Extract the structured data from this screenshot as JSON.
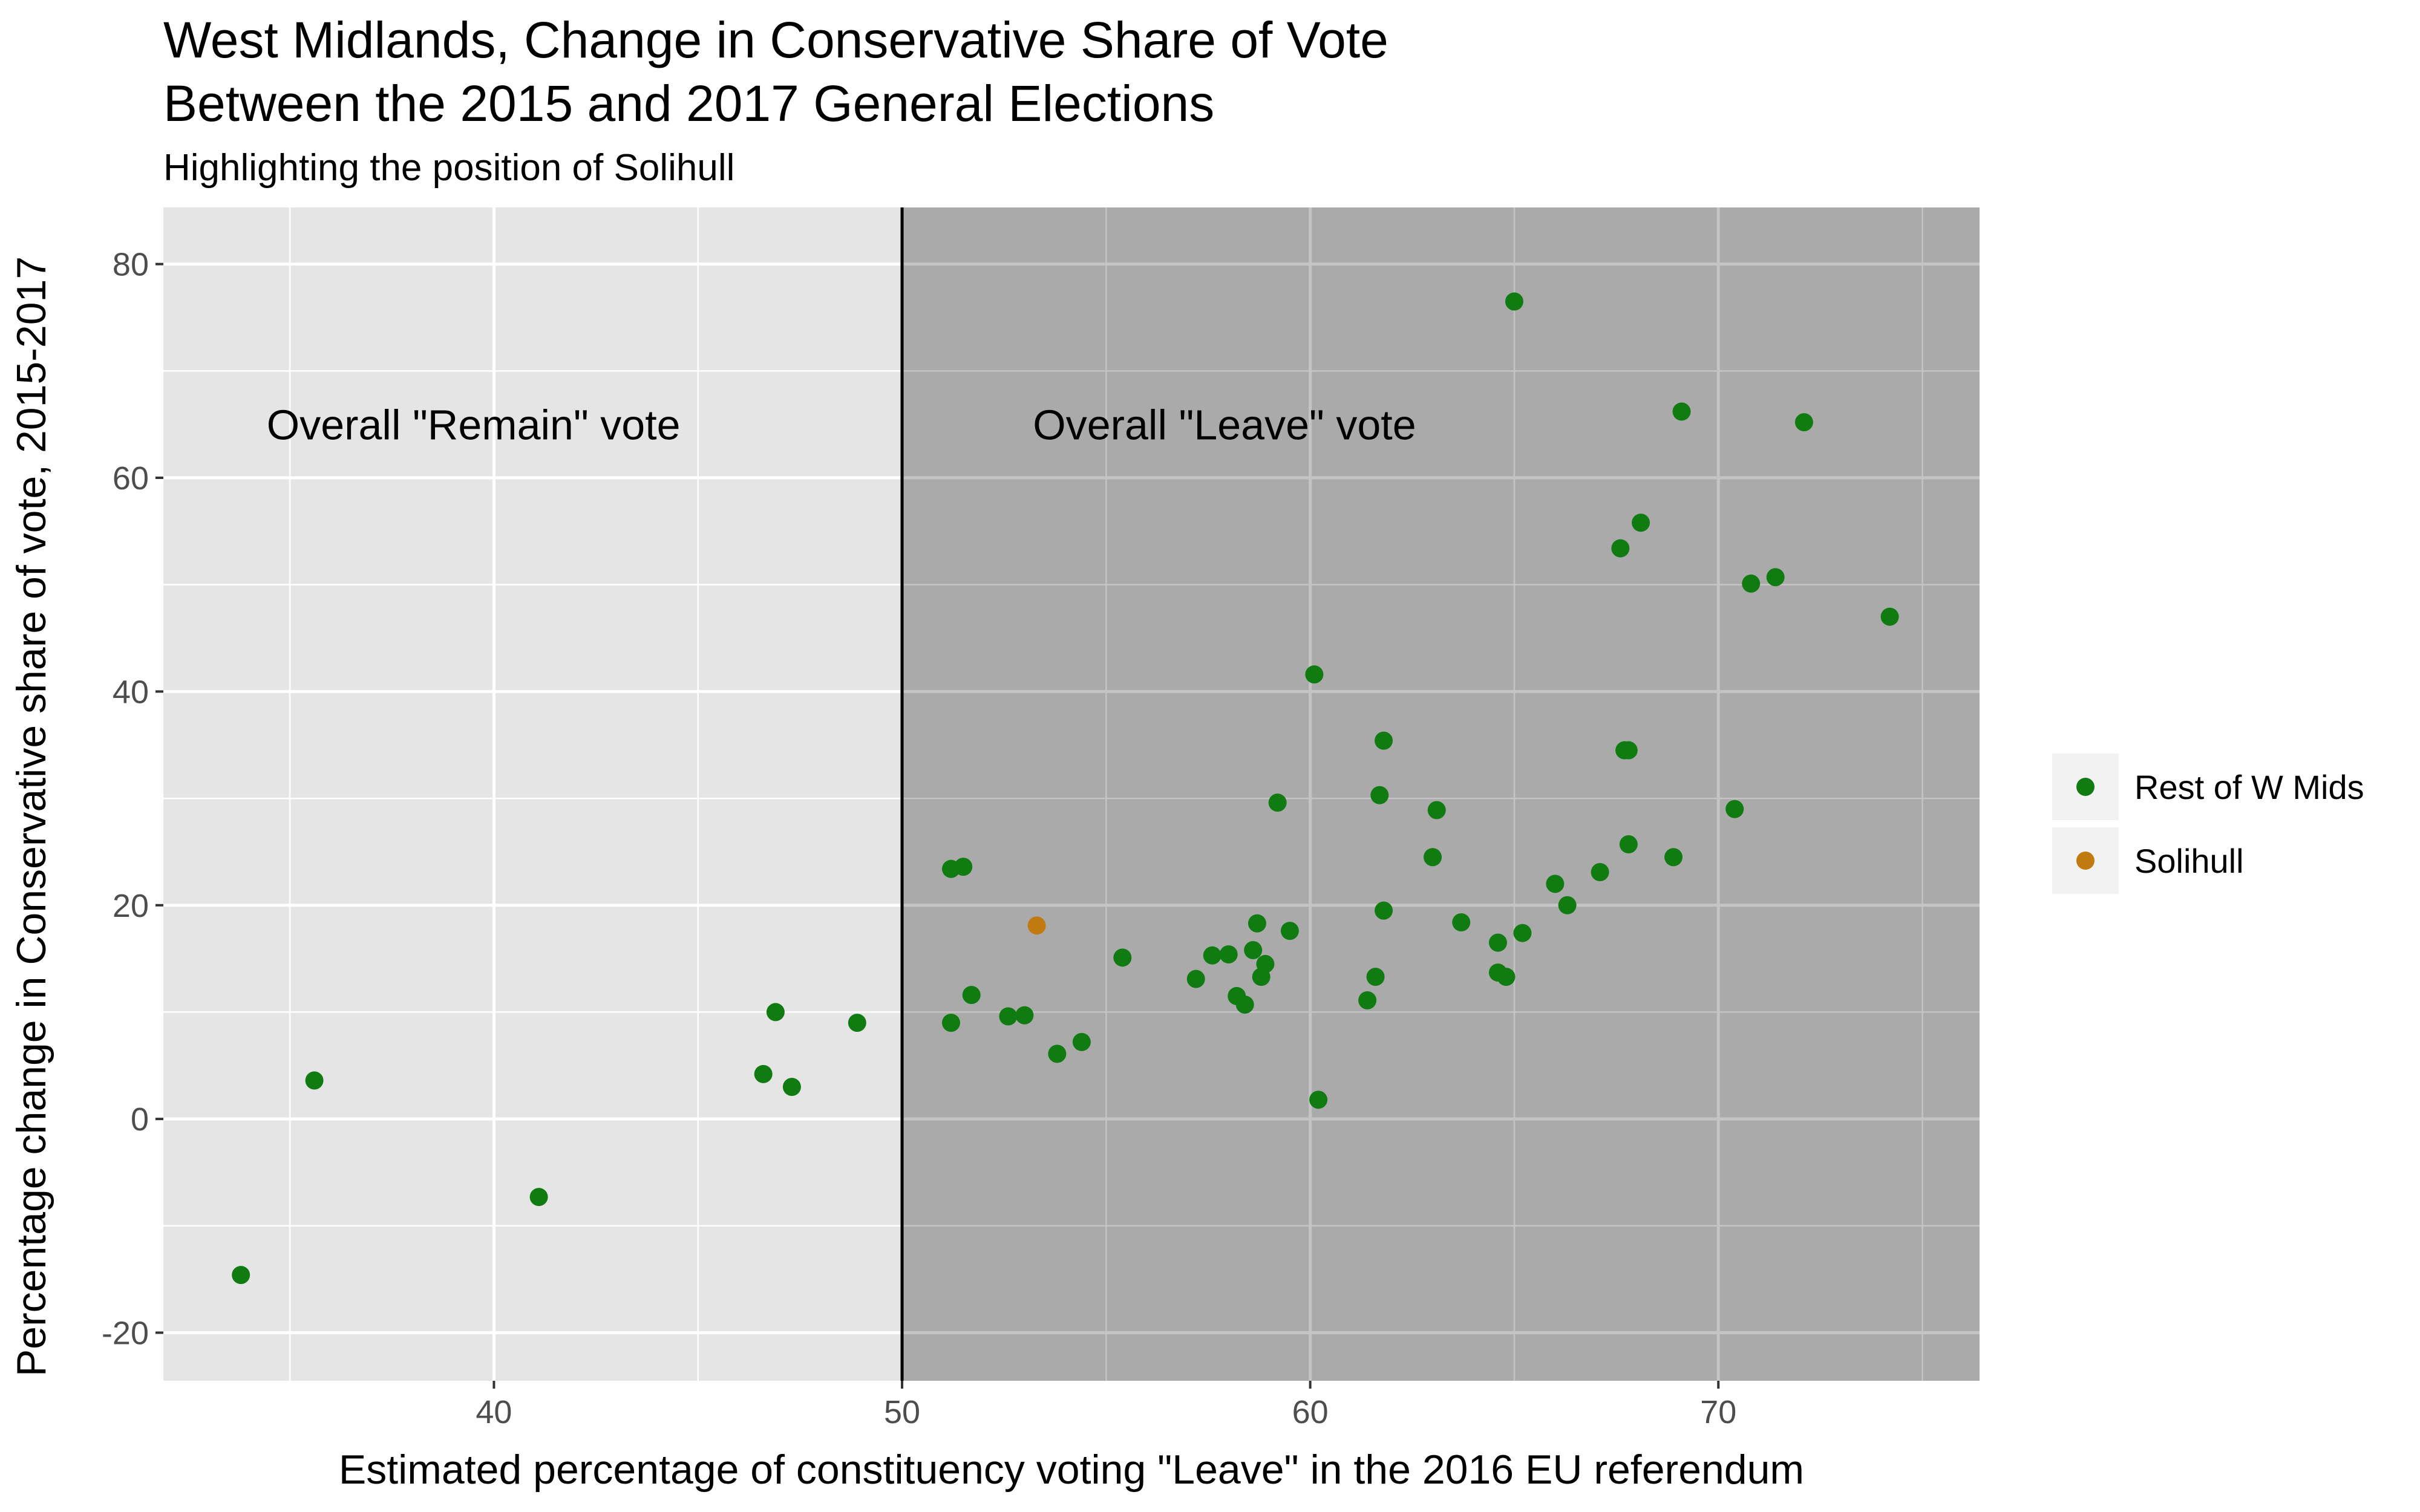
{
  "chart_data": {
    "type": "scatter",
    "title": [
      "West Midlands, Change in Conservative Share of Vote",
      "Between the 2015 and 2017 General Elections"
    ],
    "subtitle": "Highlighting the position of Solihull",
    "xlabel": "Estimated percentage of constituency voting \"Leave\" in the 2016 EU referendum",
    "ylabel": "Percentage change in Conservative share of vote, 2015-2017",
    "xlim": [
      31.9,
      76.4
    ],
    "ylim": [
      -24.5,
      85.3
    ],
    "x_ticks": [
      40,
      50,
      60,
      70
    ],
    "y_ticks": [
      -20,
      0,
      20,
      40,
      60,
      80
    ],
    "vline": 50,
    "regions": [
      {
        "label": "Overall \"Remain\" vote",
        "x_from": 31.9,
        "x_to": 50,
        "fill": "#e5e5e5",
        "label_x": 39.5,
        "label_y": 65
      },
      {
        "label": "Overall \"Leave\" vote",
        "x_from": 50,
        "x_to": 76.4,
        "fill": "#aaaaaa",
        "label_x": 57.9,
        "label_y": 65
      }
    ],
    "legend_position": "right",
    "series": [
      {
        "name": "Rest of W Mids",
        "color": "#107b10",
        "points": [
          [
            33.8,
            -14.6
          ],
          [
            35.6,
            3.6
          ],
          [
            41.1,
            -7.3
          ],
          [
            46.6,
            4.2
          ],
          [
            46.9,
            10.0
          ],
          [
            47.3,
            3.0
          ],
          [
            48.9,
            9.0
          ],
          [
            51.2,
            23.4
          ],
          [
            51.5,
            23.6
          ],
          [
            51.2,
            9.0
          ],
          [
            51.7,
            11.6
          ],
          [
            52.6,
            9.6
          ],
          [
            53.0,
            9.7
          ],
          [
            53.8,
            6.1
          ],
          [
            54.4,
            7.2
          ],
          [
            55.4,
            15.1
          ],
          [
            57.2,
            13.1
          ],
          [
            57.6,
            15.3
          ],
          [
            58.0,
            15.4
          ],
          [
            58.2,
            11.5
          ],
          [
            58.4,
            10.7
          ],
          [
            58.6,
            15.8
          ],
          [
            58.7,
            18.3
          ],
          [
            58.8,
            13.3
          ],
          [
            58.9,
            14.5
          ],
          [
            59.2,
            29.6
          ],
          [
            59.5,
            17.6
          ],
          [
            60.1,
            41.6
          ],
          [
            60.2,
            1.8
          ],
          [
            61.4,
            11.1
          ],
          [
            61.6,
            13.3
          ],
          [
            61.7,
            30.3
          ],
          [
            61.8,
            35.4
          ],
          [
            61.8,
            19.5
          ],
          [
            63.0,
            24.5
          ],
          [
            63.1,
            28.9
          ],
          [
            63.7,
            18.4
          ],
          [
            64.6,
            16.5
          ],
          [
            64.6,
            13.7
          ],
          [
            64.8,
            13.3
          ],
          [
            65.0,
            76.5
          ],
          [
            65.2,
            17.4
          ],
          [
            66.0,
            22.0
          ],
          [
            66.3,
            20.0
          ],
          [
            67.1,
            23.1
          ],
          [
            67.6,
            53.4
          ],
          [
            67.7,
            34.5
          ],
          [
            67.8,
            34.5
          ],
          [
            67.8,
            25.7
          ],
          [
            68.1,
            55.8
          ],
          [
            68.9,
            24.5
          ],
          [
            69.1,
            66.2
          ],
          [
            70.4,
            29.0
          ],
          [
            70.8,
            50.1
          ],
          [
            71.4,
            50.7
          ],
          [
            72.1,
            65.2
          ],
          [
            74.2,
            47.0
          ]
        ]
      },
      {
        "name": "Solihull",
        "color": "#c07a10",
        "points": [
          [
            53.3,
            18.1
          ]
        ]
      }
    ]
  }
}
